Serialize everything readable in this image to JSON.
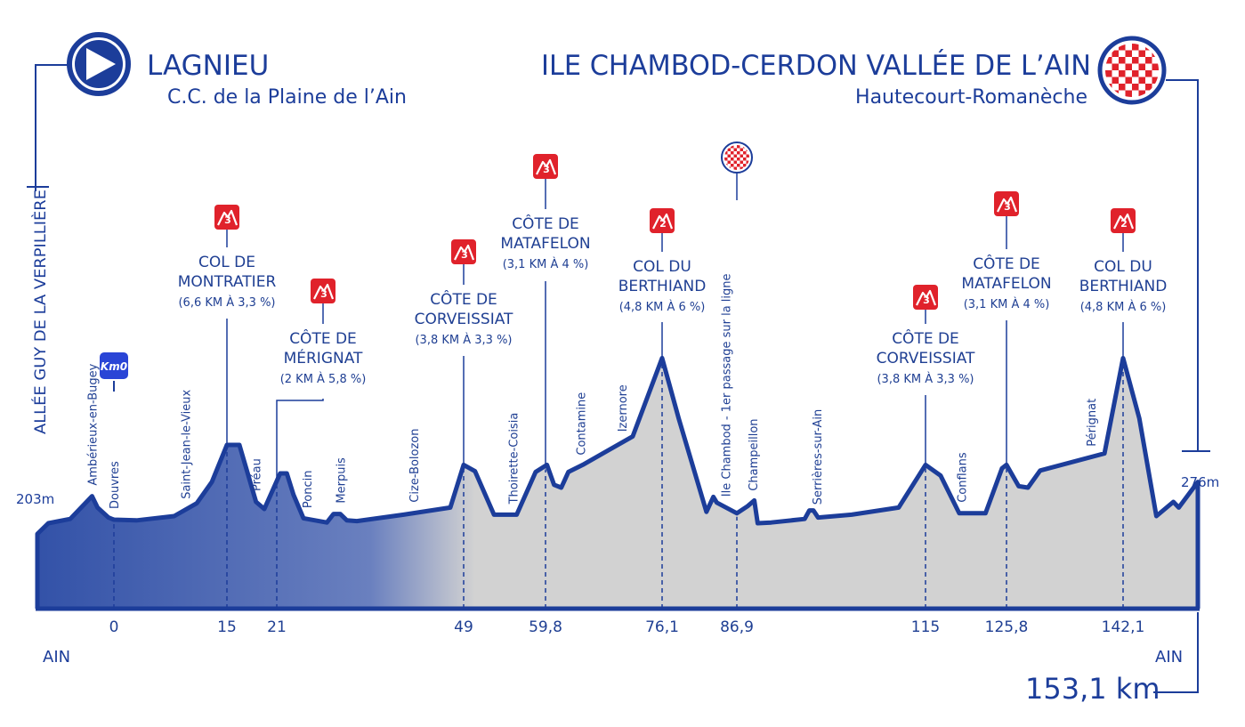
{
  "start": {
    "city": "LAGNIEU",
    "subtitle": "C.C. de la Plaine de l’Ain",
    "street": "ALLÉE GUY DE LA VERPILLIÈRE",
    "altitude": "203m",
    "region": "AIN"
  },
  "finish": {
    "city": "ILE CHAMBOD-CERDON VALLÉE DE L’AIN",
    "subtitle": "Hautecourt-Romanèche",
    "altitude": "276m",
    "region": "AIN"
  },
  "distance_total": "153,1 km",
  "km0_badge": "Km0",
  "colors": {
    "blue": "#1c3d9a",
    "blue_fill": "#5a73b8",
    "grey_fill": "#d2d2d2",
    "climb_red": "#e0222b"
  },
  "chart_data": {
    "type": "area",
    "title": "",
    "xlabel": "",
    "ylabel": "",
    "x_unit": "km",
    "xlim": [
      -7,
      153.1
    ],
    "grid": false,
    "legend": "none",
    "x_ticks": [
      "0",
      "15",
      "21",
      "49",
      "59,8",
      "76,1",
      "86,9",
      "115",
      "125,8",
      "142,1"
    ],
    "x_tick_values": [
      0,
      15,
      21,
      49,
      59.8,
      76.1,
      86.9,
      115,
      125.8,
      142.1
    ],
    "profile_x": [
      -7,
      -6,
      -4,
      -2,
      -1.5,
      -0.5,
      0,
      3,
      8,
      11,
      13,
      15,
      16.5,
      18.5,
      19.5,
      20.5,
      21.5,
      22.5,
      23.5,
      25,
      28.5,
      29.5,
      30.5,
      31.5,
      33,
      40,
      47,
      49,
      50.5,
      53,
      56,
      58.5,
      60,
      61,
      62,
      63,
      65,
      72,
      76.1,
      78.5,
      82.5,
      83.5,
      84,
      86.9,
      88.5,
      89.5,
      90,
      92,
      97,
      97.7,
      98.3,
      99,
      104,
      111,
      115,
      117,
      119.5,
      123,
      125.2,
      125.8,
      127.5,
      128.8,
      130.5,
      139.5,
      142.1,
      144.5,
      147,
      149.5,
      150.3,
      153.1
    ],
    "profile_y": [
      203,
      218,
      224,
      256,
      240,
      226,
      223,
      222,
      228,
      246,
      276,
      328,
      328,
      248,
      238,
      264,
      288,
      288,
      258,
      225,
      219,
      231,
      231,
      222,
      221,
      230,
      240,
      300,
      291,
      230,
      230,
      290,
      300,
      272,
      268,
      290,
      300,
      340,
      450,
      365,
      234,
      255,
      247,
      232,
      242,
      250,
      218,
      219,
      224,
      236,
      236,
      226,
      230,
      240,
      300,
      285,
      232,
      232,
      295,
      300,
      270,
      268,
      292,
      316,
      450,
      365,
      228,
      248,
      240,
      276
    ],
    "profile_gradient_stop_km": 49,
    "waypoints": [
      {
        "name": "Ambérieux-en-Bugey",
        "km": -2
      },
      {
        "name": "Douvres",
        "km": 0
      },
      {
        "name": "Saint-Jean-le-Vieux",
        "km": 9.5
      },
      {
        "name": "Préau",
        "km": 18.5
      },
      {
        "name": "Poncin",
        "km": 25.5
      },
      {
        "name": "Merpuis",
        "km": 30.5
      },
      {
        "name": "Cize-Bolozon",
        "km": 41.5
      },
      {
        "name": "Thoirette-Coisia",
        "km": 55.5
      },
      {
        "name": "Contamine",
        "km": 64.7
      },
      {
        "name": "Izernore",
        "km": 70.5
      },
      {
        "name": "Ile Chambod - 1er passage sur la ligne",
        "km": 85.3
      },
      {
        "name": "Champeillon",
        "km": 89.3
      },
      {
        "name": "Serrières-sur-Ain",
        "km": 98.8
      },
      {
        "name": "Conflans",
        "km": 119.8
      },
      {
        "name": "Pérignat",
        "km": 137.6
      }
    ],
    "climbs": [
      {
        "category": "3",
        "name_lines": [
          "COL DE",
          "MONTRATIER"
        ],
        "detail": "(6,6 KM À 3,3 %)",
        "km": 15
      },
      {
        "category": "3",
        "name_lines": [
          "CÔTE DE",
          "MÉRIGNAT"
        ],
        "detail": "(2 KM À 5,8 %)",
        "km": 21
      },
      {
        "category": "3",
        "name_lines": [
          "CÔTE DE",
          "CORVEISSIAT"
        ],
        "detail": "(3,8 KM À 3,3 %)",
        "km": 49
      },
      {
        "category": "3",
        "name_lines": [
          "CÔTE DE",
          "MATAFELON"
        ],
        "detail": "(3,1 KM À 4 %)",
        "km": 59.8
      },
      {
        "category": "2",
        "name_lines": [
          "COL DU",
          "BERTHIAND"
        ],
        "detail": "(4,8 KM À 6 %)",
        "km": 76.1
      },
      {
        "category": "3",
        "name_lines": [
          "CÔTE DE",
          "CORVEISSIAT"
        ],
        "detail": "(3,8 KM À 3,3 %)",
        "km": 115
      },
      {
        "category": "3",
        "name_lines": [
          "CÔTE DE",
          "MATAFELON"
        ],
        "detail": "(3,1 KM À 4 %)",
        "km": 125.8
      },
      {
        "category": "2",
        "name_lines": [
          "COL DU",
          "BERTHIAND"
        ],
        "detail": "(4,8 KM À 6 %)",
        "km": 142.1
      }
    ],
    "intermediate_line_km": 86.9
  }
}
